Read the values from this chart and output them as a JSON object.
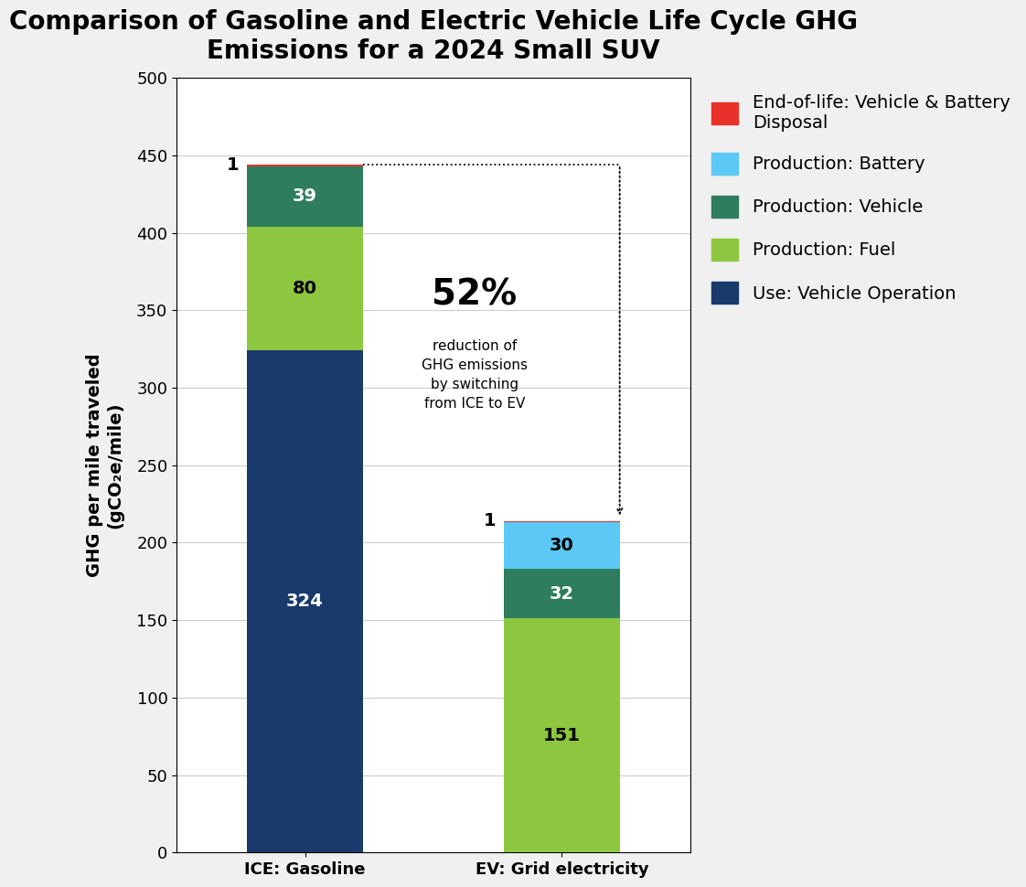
{
  "title": "Comparison of Gasoline and Electric Vehicle Life Cycle GHG\nEmissions for a 2024 Small SUV",
  "ylabel": "GHG per mile traveled\n(gCO₂e/mile)",
  "categories": [
    "ICE: Gasoline",
    "EV: Grid electricity"
  ],
  "ylim": [
    0,
    500
  ],
  "yticks": [
    0,
    50,
    100,
    150,
    200,
    250,
    300,
    350,
    400,
    450,
    500
  ],
  "segments": {
    "use_vehicle_operation": {
      "label": "Use: Vehicle Operation",
      "color": "#1a3a6b",
      "values": [
        324,
        0
      ]
    },
    "production_fuel": {
      "label": "Production: Fuel",
      "color": "#8dc63f",
      "values": [
        80,
        151
      ]
    },
    "production_vehicle": {
      "label": "Production: Vehicle",
      "color": "#2e7d5e",
      "values": [
        39,
        32
      ]
    },
    "production_battery": {
      "label": "Production: Battery",
      "color": "#5bc8f5",
      "values": [
        0,
        30
      ]
    },
    "end_of_life": {
      "label": "End-of-life: Vehicle & Battery\nDisposal",
      "color": "#e8312a",
      "values": [
        1,
        1
      ]
    }
  },
  "bar_width": 0.45,
  "bar_positions": [
    0,
    1
  ],
  "annotation_pct": "52%",
  "annotation_text": "reduction of\nGHG emissions\nby switching\nfrom ICE to EV",
  "ice_total": 444,
  "ev_total": 214,
  "background_color": "#f0f0f0",
  "plot_bg_color": "#ffffff",
  "title_fontsize": 20,
  "axis_label_fontsize": 14,
  "tick_fontsize": 13,
  "legend_fontsize": 14,
  "bar_label_fontsize": 14,
  "annotation_pct_fontsize": 28
}
